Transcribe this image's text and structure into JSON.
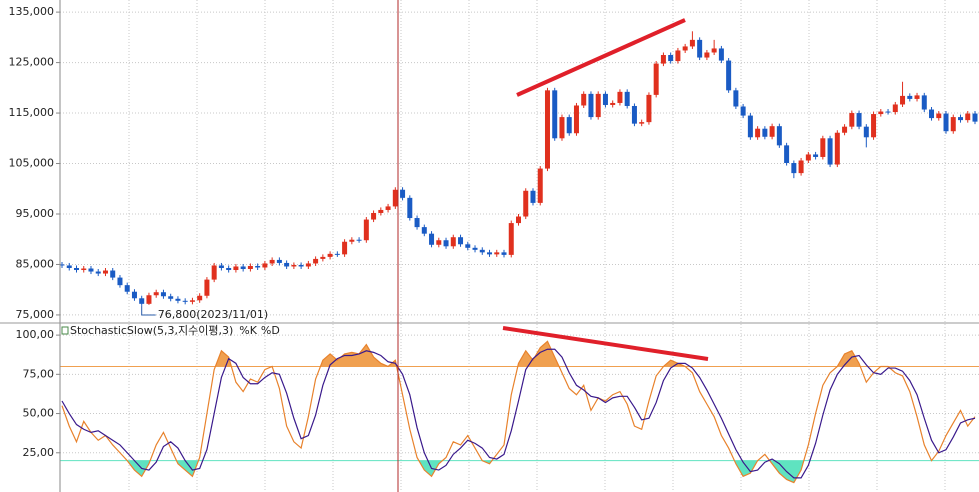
{
  "chart_data": [
    {
      "type": "candlestick",
      "open": [
        85000,
        84800,
        84300,
        83900,
        84200,
        83600,
        83200,
        83800,
        82400,
        80900,
        79600,
        78300,
        77200,
        78900,
        79500,
        78700,
        78200,
        77800,
        77600,
        77900,
        78800,
        82000,
        84800,
        84300,
        83900,
        84600,
        84100,
        84700,
        84400,
        85200,
        85900,
        85300,
        84600,
        84900,
        84600,
        85200,
        86100,
        86500,
        87100,
        87000,
        89500,
        89900,
        89800,
        93900,
        95200,
        95800,
        96500,
        99800,
        98200,
        94200,
        92400,
        91100,
        88900,
        89800,
        88600,
        90400,
        89000,
        88300,
        87900,
        87400,
        87000,
        87400,
        86900,
        93200,
        94500,
        99600,
        97200,
        104000,
        119500,
        110000,
        114200,
        111000,
        116500,
        118800,
        114200,
        118800,
        116600,
        117000,
        119200,
        116400,
        112900,
        113200,
        118600,
        124800,
        126500,
        125300,
        127400,
        128200,
        129500,
        126000,
        127000,
        127800,
        125400,
        119500,
        116300,
        114500,
        110200,
        111900,
        110300,
        112400,
        108600,
        105100,
        103100,
        105600,
        106800,
        106300,
        110000,
        104800,
        111100,
        112300,
        115000,
        112300,
        110200,
        114800,
        115300,
        115200,
        116700,
        118400,
        117800,
        118500,
        115700,
        114000,
        114900,
        111400,
        114200,
        113600,
        114900
      ],
      "high": [
        85500,
        85300,
        84800,
        84700,
        84700,
        84100,
        84300,
        84300,
        82900,
        81400,
        80100,
        78800,
        79400,
        80000,
        80000,
        79200,
        78700,
        78300,
        78400,
        79300,
        82500,
        85300,
        85300,
        84800,
        85100,
        85100,
        85200,
        85200,
        85700,
        86400,
        86400,
        85800,
        85400,
        85400,
        85700,
        86600,
        87000,
        87600,
        87600,
        90000,
        90400,
        90400,
        94400,
        95700,
        96300,
        97000,
        100300,
        100300,
        98700,
        94700,
        92900,
        91600,
        90300,
        90300,
        90900,
        90900,
        89500,
        88800,
        88400,
        87900,
        87900,
        87900,
        93700,
        95000,
        100100,
        100100,
        104500,
        120000,
        120000,
        114700,
        114700,
        117000,
        119300,
        119300,
        119300,
        119300,
        117500,
        119700,
        119700,
        116900,
        113700,
        119100,
        125300,
        127000,
        127000,
        127900,
        128700,
        131200,
        130000,
        127500,
        129500,
        128300,
        125900,
        120000,
        116800,
        115000,
        112400,
        112400,
        112900,
        112900,
        109100,
        105600,
        106100,
        107300,
        107300,
        110500,
        110500,
        111600,
        112800,
        115500,
        115500,
        112800,
        115300,
        115800,
        115800,
        117200,
        121200,
        118900,
        119000,
        119000,
        116200,
        115400,
        115400,
        114700,
        114700,
        115400,
        115400
      ],
      "low": [
        84300,
        83800,
        83400,
        83400,
        83100,
        82700,
        82700,
        81900,
        80400,
        79100,
        77800,
        76800,
        77000,
        78400,
        78200,
        77700,
        77300,
        77100,
        77100,
        77400,
        78300,
        81500,
        83800,
        83400,
        83400,
        83600,
        83600,
        83900,
        83900,
        84700,
        84800,
        84100,
        84100,
        84100,
        84100,
        84700,
        85600,
        86000,
        86500,
        86500,
        89000,
        89300,
        89300,
        93400,
        94700,
        95300,
        96000,
        97700,
        93700,
        91900,
        90600,
        88400,
        88400,
        88100,
        88100,
        88500,
        87800,
        87400,
        86900,
        86500,
        86500,
        86400,
        86400,
        92700,
        94000,
        96700,
        96700,
        103500,
        109500,
        109500,
        110500,
        110500,
        116000,
        113700,
        113700,
        116100,
        116100,
        116500,
        115900,
        112400,
        112400,
        112700,
        118100,
        124300,
        124800,
        124800,
        126900,
        127700,
        125500,
        125500,
        126500,
        124900,
        119000,
        115800,
        114000,
        109700,
        109700,
        109800,
        109800,
        108100,
        104600,
        102100,
        102600,
        105100,
        105800,
        105800,
        104300,
        104300,
        110600,
        111800,
        111800,
        108200,
        109700,
        114300,
        114700,
        114700,
        116200,
        117300,
        117300,
        115200,
        113500,
        113500,
        110900,
        110900,
        113100,
        113100,
        112800
      ],
      "close": [
        84800,
        84300,
        83900,
        84200,
        83600,
        83200,
        83800,
        82400,
        80900,
        79600,
        78300,
        77200,
        78900,
        79500,
        78700,
        78200,
        77800,
        77600,
        77900,
        78800,
        82000,
        84800,
        84300,
        83900,
        84600,
        84100,
        84700,
        84400,
        85200,
        85900,
        85300,
        84600,
        84900,
        84600,
        85200,
        86100,
        86500,
        87100,
        87000,
        89500,
        89900,
        89800,
        93900,
        95200,
        95800,
        96500,
        99800,
        98200,
        94200,
        92400,
        91100,
        88900,
        89800,
        88600,
        90400,
        89000,
        88300,
        87900,
        87400,
        87000,
        87400,
        86900,
        93200,
        94500,
        99600,
        97200,
        104000,
        119500,
        110000,
        114200,
        111000,
        116500,
        118800,
        114200,
        118800,
        116600,
        117000,
        119200,
        116400,
        112900,
        113200,
        118600,
        124800,
        126500,
        125300,
        127400,
        128200,
        129500,
        126000,
        127000,
        127800,
        125400,
        119500,
        116300,
        114500,
        110200,
        111900,
        110300,
        112400,
        108600,
        105100,
        103100,
        105600,
        106800,
        106300,
        110000,
        104800,
        111100,
        112300,
        115000,
        112300,
        110200,
        114800,
        115300,
        115200,
        116700,
        118400,
        117800,
        118500,
        115700,
        114000,
        114900,
        111400,
        114200,
        113600,
        114900,
        113300
      ],
      "up_color": "#e0301e",
      "down_color": "#1a5bc4",
      "low_label": "76,800(2023/11/01)",
      "ylim": [
        73600,
        137400
      ],
      "yticks": [
        {
          "value": 75000,
          "label": "75,000"
        },
        {
          "value": 85000,
          "label": "85,000"
        },
        {
          "value": 95000,
          "label": "95,000"
        },
        {
          "value": 105000,
          "label": "105,000"
        },
        {
          "value": 115000,
          "label": "115,000"
        },
        {
          "value": 125000,
          "label": "125,000"
        },
        {
          "value": 135000,
          "label": "135,000"
        }
      ],
      "grid": true
    },
    {
      "type": "line",
      "title": "StochasticSlow(5,3,지수이평,3)",
      "series": [
        {
          "name": "%K",
          "color": "#e8822c",
          "values": [
            55,
            42,
            32,
            45,
            38,
            33,
            36,
            30,
            25,
            20,
            14,
            10,
            18,
            30,
            38,
            28,
            18,
            14,
            10,
            22,
            50,
            78,
            90,
            86,
            70,
            64,
            72,
            70,
            78,
            80,
            66,
            42,
            32,
            28,
            48,
            72,
            84,
            88,
            84,
            88,
            89,
            88,
            94,
            86,
            82,
            80,
            84,
            62,
            40,
            22,
            14,
            10,
            18,
            22,
            32,
            30,
            36,
            28,
            20,
            18,
            24,
            30,
            62,
            82,
            90,
            84,
            92,
            96,
            86,
            76,
            66,
            62,
            68,
            52,
            60,
            58,
            62,
            64,
            56,
            42,
            40,
            58,
            74,
            80,
            84,
            82,
            80,
            76,
            64,
            56,
            48,
            36,
            28,
            18,
            10,
            12,
            20,
            24,
            18,
            12,
            8,
            6,
            14,
            30,
            50,
            68,
            76,
            80,
            88,
            90,
            82,
            70,
            76,
            80,
            80,
            76,
            74,
            64,
            48,
            30,
            20,
            26,
            36,
            44,
            52,
            42,
            48
          ]
        },
        {
          "name": "%D",
          "color": "#3a1a8c",
          "values": [
            58,
            50,
            43,
            40,
            38,
            39,
            36,
            33,
            30,
            25,
            20,
            15,
            14,
            19,
            29,
            32,
            28,
            20,
            14,
            15,
            27,
            50,
            73,
            85,
            82,
            73,
            69,
            69,
            73,
            76,
            75,
            63,
            47,
            34,
            36,
            49,
            68,
            81,
            85,
            87,
            87,
            88,
            90,
            89,
            87,
            83,
            82,
            75,
            62,
            41,
            25,
            15,
            14,
            17,
            24,
            28,
            33,
            31,
            28,
            22,
            21,
            24,
            39,
            58,
            78,
            85,
            89,
            91,
            91,
            86,
            76,
            68,
            65,
            61,
            60,
            57,
            60,
            61,
            61,
            54,
            46,
            47,
            57,
            71,
            79,
            82,
            82,
            79,
            73,
            65,
            56,
            47,
            37,
            27,
            19,
            13,
            14,
            19,
            21,
            18,
            13,
            9,
            9,
            17,
            31,
            49,
            65,
            75,
            81,
            86,
            87,
            81,
            76,
            75,
            79,
            79,
            77,
            71,
            62,
            47,
            33,
            25,
            27,
            35,
            44,
            46,
            47
          ]
        }
      ],
      "overbought": 80,
      "oversold": 20,
      "overbought_color": "#f0a050",
      "oversold_color": "#5fe3c0",
      "ylim": [
        0,
        105.8
      ],
      "yticks": [
        {
          "value": 25,
          "label": "25,00"
        },
        {
          "value": 50,
          "label": "50,00"
        },
        {
          "value": 75,
          "label": "75,00"
        },
        {
          "value": 100,
          "label": "100,00"
        }
      ],
      "grid": true
    }
  ]
}
